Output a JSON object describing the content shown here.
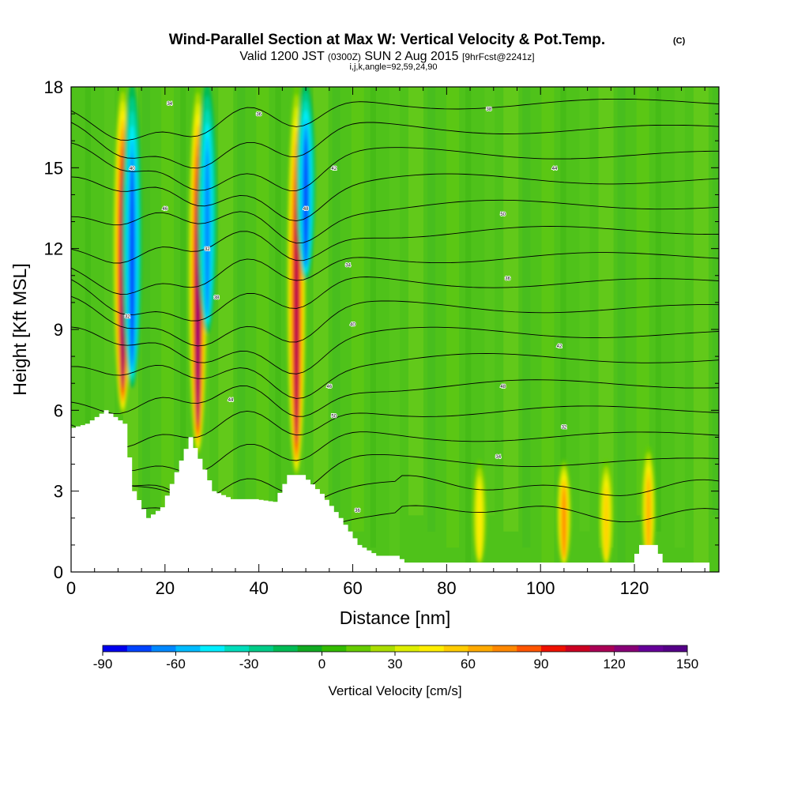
{
  "header": {
    "title": "Wind-Parallel Section at Max W: Vertical Velocity & Pot.Temp.",
    "title_mark": "(C)",
    "valid_prefix": "Valid 1200 JST",
    "valid_zulu": "(0300Z)",
    "valid_date": "SUN 2 Aug 2015",
    "forecast": "[9hrFcst@2241z]",
    "params": "i,j,k,angle=92,59,24,90"
  },
  "chart_data": {
    "type": "heatmap",
    "title": "Wind-Parallel Section at Max W: Vertical Velocity & Pot.Temp.",
    "xlabel": "Distance [nm]",
    "ylabel": "Height [Kft MSL]",
    "xlim": [
      0,
      138
    ],
    "ylim": [
      0,
      18
    ],
    "x_ticks": [
      0,
      20,
      40,
      60,
      80,
      100,
      120
    ],
    "y_ticks": [
      0,
      3,
      6,
      9,
      12,
      15,
      18
    ],
    "grid": false,
    "colorbar": {
      "label": "Vertical Velocity [cm/s]",
      "min": -90,
      "max": 150,
      "step": 10,
      "tick_labels": [
        -90,
        -60,
        -30,
        0,
        30,
        60,
        90,
        120,
        150
      ],
      "colors": [
        "#0000ee",
        "#0044ff",
        "#0088ff",
        "#00bbff",
        "#00eeff",
        "#00ddbb",
        "#00cc88",
        "#00bb55",
        "#11aa22",
        "#33bb00",
        "#66cc00",
        "#aadd00",
        "#ddee00",
        "#ffee00",
        "#ffcc00",
        "#ffaa00",
        "#ff8800",
        "#ff5500",
        "#ee1100",
        "#cc0022",
        "#aa0055",
        "#880077",
        "#660099",
        "#550088"
      ]
    },
    "vertical_velocity_features": [
      {
        "x": 11,
        "y_bottom": 6,
        "y_top": 18,
        "peak": 120,
        "kind": "updraft"
      },
      {
        "x": 13,
        "y_bottom": 7,
        "y_top": 18,
        "peak": -70,
        "kind": "downdraft"
      },
      {
        "x": 27,
        "y_bottom": 4.5,
        "y_top": 18,
        "peak": 120,
        "kind": "updraft"
      },
      {
        "x": 29,
        "y_bottom": 9,
        "y_top": 18,
        "peak": -60,
        "kind": "downdraft"
      },
      {
        "x": 48,
        "y_bottom": 3.7,
        "y_top": 18,
        "peak": 110,
        "kind": "updraft"
      },
      {
        "x": 50,
        "y_bottom": 11,
        "y_top": 18,
        "peak": -70,
        "kind": "downdraft"
      },
      {
        "x": 87,
        "y_bottom": 0.4,
        "y_top": 4,
        "peak": 40,
        "kind": "updraft"
      },
      {
        "x": 105,
        "y_bottom": 0.4,
        "y_top": 4,
        "peak": 70,
        "kind": "updraft"
      },
      {
        "x": 114,
        "y_bottom": 0.4,
        "y_top": 4,
        "peak": 50,
        "kind": "updraft"
      },
      {
        "x": 123,
        "y_bottom": 0.4,
        "y_top": 4.5,
        "peak": 60,
        "kind": "updraft"
      }
    ],
    "terrain_kft": [
      [
        0,
        5.3
      ],
      [
        4,
        5.5
      ],
      [
        8,
        6.0
      ],
      [
        12,
        5.5
      ],
      [
        14,
        3.0
      ],
      [
        17,
        2.0
      ],
      [
        20,
        2.4
      ],
      [
        23,
        3.7
      ],
      [
        26,
        5.0
      ],
      [
        28,
        4.2
      ],
      [
        31,
        3.0
      ],
      [
        35,
        2.7
      ],
      [
        40,
        2.7
      ],
      [
        44,
        2.6
      ],
      [
        47,
        3.6
      ],
      [
        50,
        3.6
      ],
      [
        54,
        2.9
      ],
      [
        58,
        2.0
      ],
      [
        62,
        1.0
      ],
      [
        66,
        0.6
      ],
      [
        70,
        0.6
      ],
      [
        72,
        0.35
      ],
      [
        120,
        0.35
      ],
      [
        122,
        1.0
      ],
      [
        125,
        1.0
      ],
      [
        127,
        0.35
      ],
      [
        136,
        0.35
      ]
    ],
    "theta_contour_labels": [
      "32",
      "34",
      "36",
      "38",
      "40",
      "42",
      "44",
      "46",
      "48",
      "50"
    ]
  }
}
